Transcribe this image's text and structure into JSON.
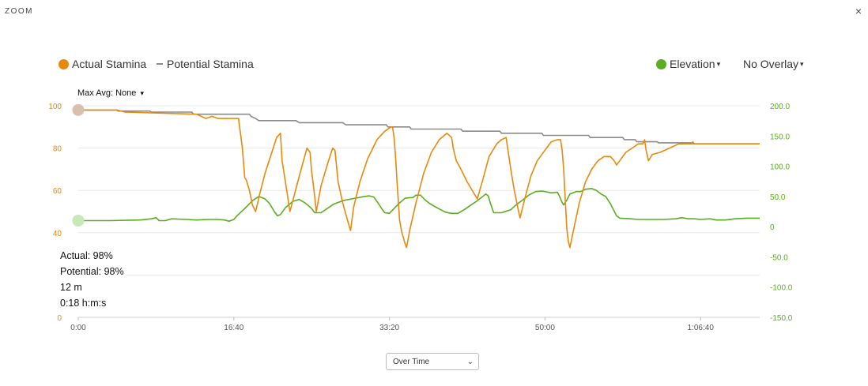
{
  "header": {
    "title": "ZOOM",
    "close_label": "×"
  },
  "legend": {
    "actual_label": "Actual Stamina",
    "potential_label": "Potential Stamina",
    "elevation_label": "Elevation",
    "overlay_label": "No Overlay",
    "caret": "▾"
  },
  "max_avg": {
    "label": "Max Avg: None",
    "caret": "▾"
  },
  "readout": {
    "actual": "Actual: 98%",
    "potential": "Potential: 98%",
    "distance": "12 m",
    "time": "0:18 h:m:s"
  },
  "mode_select": {
    "value": "Over Time",
    "chevron": "⌄"
  },
  "colors": {
    "actual": "#e8890c",
    "potential": "#8a8a8a",
    "elevation": "#5aac20",
    "grid": "#e8e8e8"
  },
  "chart_data": {
    "type": "line",
    "x_unit": "h:m:s",
    "x_range_seconds": [
      0,
      4380
    ],
    "x_ticks": [
      {
        "t": 0,
        "label": "0:00"
      },
      {
        "t": 1000,
        "label": "16:40"
      },
      {
        "t": 2000,
        "label": "33:20"
      },
      {
        "t": 3000,
        "label": "50:00"
      },
      {
        "t": 4000,
        "label": "1:06:40"
      }
    ],
    "y_left": {
      "range": [
        0,
        100
      ],
      "ticks": [
        "100",
        "80",
        "60",
        "40",
        "",
        "0"
      ],
      "tick_values": [
        100,
        80,
        60,
        40,
        20,
        0
      ]
    },
    "y_right": {
      "range": [
        -150,
        200
      ],
      "ticks": [
        "200.0",
        "150.0",
        "100.0",
        "50.0",
        "0",
        "-50.0",
        "-100.0",
        "-150.0"
      ],
      "tick_values": [
        200,
        150,
        100,
        50,
        0,
        -50,
        -100,
        -150
      ]
    },
    "series": [
      {
        "name": "Actual Stamina",
        "axis": "left",
        "points": [
          [
            0,
            98
          ],
          [
            18,
            98
          ],
          [
            250,
            98
          ],
          [
            300,
            97
          ],
          [
            760,
            96
          ],
          [
            820,
            94
          ],
          [
            860,
            95
          ],
          [
            900,
            94
          ],
          [
            1030,
            94
          ],
          [
            1055,
            80
          ],
          [
            1070,
            66
          ],
          [
            1080,
            65
          ],
          [
            1100,
            60
          ],
          [
            1120,
            53
          ],
          [
            1140,
            50
          ],
          [
            1165,
            58
          ],
          [
            1200,
            68
          ],
          [
            1240,
            77
          ],
          [
            1275,
            85
          ],
          [
            1300,
            87
          ],
          [
            1310,
            74
          ],
          [
            1325,
            67
          ],
          [
            1340,
            60
          ],
          [
            1360,
            50
          ],
          [
            1375,
            54
          ],
          [
            1400,
            61
          ],
          [
            1440,
            72
          ],
          [
            1470,
            80
          ],
          [
            1490,
            78
          ],
          [
            1500,
            69
          ],
          [
            1510,
            63
          ],
          [
            1520,
            57
          ],
          [
            1530,
            50
          ],
          [
            1560,
            62
          ],
          [
            1600,
            72
          ],
          [
            1635,
            80
          ],
          [
            1650,
            79
          ],
          [
            1670,
            64
          ],
          [
            1700,
            54
          ],
          [
            1730,
            46
          ],
          [
            1750,
            41
          ],
          [
            1770,
            52
          ],
          [
            1810,
            64
          ],
          [
            1860,
            75
          ],
          [
            1920,
            84
          ],
          [
            1970,
            88
          ],
          [
            2010,
            90
          ],
          [
            2020,
            90
          ],
          [
            2030,
            85
          ],
          [
            2040,
            75
          ],
          [
            2050,
            63
          ],
          [
            2060,
            52
          ],
          [
            2065,
            46
          ],
          [
            2080,
            40
          ],
          [
            2100,
            35
          ],
          [
            2110,
            33
          ],
          [
            2130,
            41
          ],
          [
            2170,
            54
          ],
          [
            2220,
            68
          ],
          [
            2270,
            78
          ],
          [
            2320,
            84
          ],
          [
            2370,
            87
          ],
          [
            2400,
            85
          ],
          [
            2410,
            80
          ],
          [
            2430,
            74
          ],
          [
            2460,
            70
          ],
          [
            2500,
            64
          ],
          [
            2540,
            59
          ],
          [
            2565,
            56
          ],
          [
            2580,
            60
          ],
          [
            2600,
            65
          ],
          [
            2640,
            76
          ],
          [
            2690,
            82
          ],
          [
            2720,
            84
          ],
          [
            2750,
            85
          ],
          [
            2760,
            80
          ],
          [
            2780,
            70
          ],
          [
            2800,
            61
          ],
          [
            2830,
            50
          ],
          [
            2840,
            47
          ],
          [
            2870,
            56
          ],
          [
            2910,
            67
          ],
          [
            2950,
            74
          ],
          [
            3000,
            79
          ],
          [
            3040,
            83
          ],
          [
            3080,
            84
          ],
          [
            3100,
            84
          ],
          [
            3110,
            79
          ],
          [
            3120,
            70
          ],
          [
            3130,
            56
          ],
          [
            3140,
            42
          ],
          [
            3150,
            36
          ],
          [
            3160,
            33
          ],
          [
            3180,
            40
          ],
          [
            3220,
            54
          ],
          [
            3260,
            64
          ],
          [
            3300,
            70
          ],
          [
            3340,
            74
          ],
          [
            3380,
            76
          ],
          [
            3420,
            76
          ],
          [
            3445,
            74
          ],
          [
            3460,
            72
          ],
          [
            3480,
            74
          ],
          [
            3520,
            78
          ],
          [
            3560,
            80
          ],
          [
            3600,
            82
          ],
          [
            3630,
            82
          ],
          [
            3640,
            84
          ],
          [
            3650,
            79
          ],
          [
            3665,
            74
          ],
          [
            3690,
            77
          ],
          [
            3740,
            78
          ],
          [
            3800,
            80
          ],
          [
            3860,
            82
          ],
          [
            3920,
            82
          ],
          [
            3940,
            82
          ],
          [
            3950,
            83
          ],
          [
            3960,
            82
          ],
          [
            4000,
            82
          ],
          [
            4200,
            82
          ],
          [
            4380,
            82
          ]
        ]
      },
      {
        "name": "Potential Stamina",
        "axis": "left",
        "points": [
          [
            0,
            98
          ],
          [
            250,
            98
          ],
          [
            255,
            97.5
          ],
          [
            460,
            97.5
          ],
          [
            470,
            97
          ],
          [
            730,
            97
          ],
          [
            740,
            96
          ],
          [
            1100,
            96
          ],
          [
            1110,
            95
          ],
          [
            1140,
            94
          ],
          [
            1160,
            93
          ],
          [
            1400,
            93
          ],
          [
            1420,
            92
          ],
          [
            1700,
            92
          ],
          [
            1720,
            91
          ],
          [
            1980,
            91
          ],
          [
            1990,
            90
          ],
          [
            2130,
            90
          ],
          [
            2140,
            89
          ],
          [
            2460,
            89
          ],
          [
            2470,
            88
          ],
          [
            2710,
            88
          ],
          [
            2720,
            87
          ],
          [
            2980,
            87
          ],
          [
            2990,
            86
          ],
          [
            3280,
            86
          ],
          [
            3290,
            85
          ],
          [
            3500,
            85
          ],
          [
            3510,
            84
          ],
          [
            3580,
            84
          ],
          [
            3590,
            83
          ],
          [
            3720,
            83
          ],
          [
            3730,
            82.5
          ],
          [
            3940,
            82.5
          ],
          [
            3950,
            82
          ],
          [
            4380,
            82
          ]
        ]
      },
      {
        "name": "Elevation",
        "axis": "right",
        "points": [
          [
            0,
            10
          ],
          [
            200,
            10
          ],
          [
            400,
            11
          ],
          [
            470,
            13
          ],
          [
            500,
            15
          ],
          [
            520,
            10
          ],
          [
            560,
            10
          ],
          [
            600,
            13
          ],
          [
            700,
            12
          ],
          [
            760,
            11
          ],
          [
            840,
            12
          ],
          [
            900,
            12
          ],
          [
            940,
            11
          ],
          [
            970,
            9
          ],
          [
            1000,
            12
          ],
          [
            1020,
            18
          ],
          [
            1070,
            30
          ],
          [
            1120,
            43
          ],
          [
            1160,
            50
          ],
          [
            1200,
            46
          ],
          [
            1230,
            38
          ],
          [
            1260,
            25
          ],
          [
            1280,
            18
          ],
          [
            1300,
            20
          ],
          [
            1330,
            31
          ],
          [
            1380,
            42
          ],
          [
            1420,
            45
          ],
          [
            1460,
            39
          ],
          [
            1500,
            30
          ],
          [
            1520,
            23
          ],
          [
            1560,
            23
          ],
          [
            1600,
            30
          ],
          [
            1640,
            37
          ],
          [
            1700,
            43
          ],
          [
            1760,
            46
          ],
          [
            1820,
            49
          ],
          [
            1870,
            51
          ],
          [
            1900,
            49
          ],
          [
            1930,
            38
          ],
          [
            1950,
            30
          ],
          [
            1970,
            23
          ],
          [
            2000,
            22
          ],
          [
            2030,
            30
          ],
          [
            2060,
            38
          ],
          [
            2100,
            47
          ],
          [
            2130,
            48
          ],
          [
            2150,
            48
          ],
          [
            2170,
            52
          ],
          [
            2200,
            52
          ],
          [
            2230,
            44
          ],
          [
            2260,
            38
          ],
          [
            2300,
            32
          ],
          [
            2360,
            24
          ],
          [
            2400,
            22
          ],
          [
            2440,
            22
          ],
          [
            2480,
            28
          ],
          [
            2520,
            35
          ],
          [
            2560,
            42
          ],
          [
            2600,
            50
          ],
          [
            2620,
            54
          ],
          [
            2635,
            51
          ],
          [
            2650,
            38
          ],
          [
            2670,
            23
          ],
          [
            2720,
            23
          ],
          [
            2780,
            28
          ],
          [
            2810,
            35
          ],
          [
            2860,
            45
          ],
          [
            2900,
            53
          ],
          [
            2940,
            58
          ],
          [
            2980,
            59
          ],
          [
            3020,
            57
          ],
          [
            3040,
            56
          ],
          [
            3080,
            57
          ],
          [
            3090,
            52
          ],
          [
            3110,
            40
          ],
          [
            3120,
            36
          ],
          [
            3140,
            44
          ],
          [
            3160,
            54
          ],
          [
            3200,
            58
          ],
          [
            3230,
            58
          ],
          [
            3260,
            62
          ],
          [
            3300,
            63
          ],
          [
            3330,
            60
          ],
          [
            3360,
            54
          ],
          [
            3390,
            50
          ],
          [
            3420,
            38
          ],
          [
            3440,
            28
          ],
          [
            3460,
            18
          ],
          [
            3480,
            14
          ],
          [
            3550,
            13
          ],
          [
            3600,
            12
          ],
          [
            3640,
            12
          ],
          [
            3700,
            12
          ],
          [
            3760,
            12
          ],
          [
            3840,
            13
          ],
          [
            3880,
            15
          ],
          [
            3920,
            13
          ],
          [
            3960,
            13
          ],
          [
            4000,
            12
          ],
          [
            4060,
            13
          ],
          [
            4100,
            11
          ],
          [
            4160,
            11
          ],
          [
            4220,
            13
          ],
          [
            4300,
            14
          ],
          [
            4380,
            14
          ]
        ]
      }
    ],
    "markers": [
      {
        "series": "Actual Stamina",
        "t": 0,
        "value": 98
      },
      {
        "series": "Elevation",
        "t": 0,
        "value": 10
      }
    ]
  }
}
